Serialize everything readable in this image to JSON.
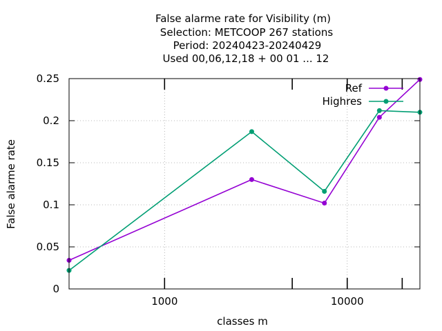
{
  "chart_data": {
    "type": "line",
    "title_lines": [
      "False alarme rate  for Visibility (m)",
      "Selection: METCOOP    267 stations",
      "Period: 20240423-20240429",
      "Used  00,06,12,18 + 00 01 ... 12"
    ],
    "xlabel": "classes m",
    "ylabel": "False alarme rate",
    "x_scale": "log",
    "xlim": [
      300,
      25000
    ],
    "ylim": [
      0,
      0.25
    ],
    "x_ticks": [
      {
        "value": 1000,
        "label": "1000"
      },
      {
        "value": 10000,
        "label": "10000"
      }
    ],
    "x_minor_ticks": [
      5000,
      20000
    ],
    "y_ticks": [
      {
        "value": 0,
        "label": "0"
      },
      {
        "value": 0.05,
        "label": "0.05"
      },
      {
        "value": 0.1,
        "label": "0.1"
      },
      {
        "value": 0.15,
        "label": "0.15"
      },
      {
        "value": 0.2,
        "label": "0.2"
      },
      {
        "value": 0.25,
        "label": "0.25"
      }
    ],
    "grid": true,
    "legend_position": "top-right",
    "series": [
      {
        "name": "Ref",
        "color": "#9400d3",
        "points": [
          {
            "x": 300,
            "y": 0.034
          },
          {
            "x": 3000,
            "y": 0.13
          },
          {
            "x": 7500,
            "y": 0.102
          },
          {
            "x": 15000,
            "y": 0.204
          },
          {
            "x": 25000,
            "y": 0.249
          }
        ]
      },
      {
        "name": "Highres",
        "color": "#009e73",
        "points": [
          {
            "x": 300,
            "y": 0.022
          },
          {
            "x": 3000,
            "y": 0.187
          },
          {
            "x": 7500,
            "y": 0.116
          },
          {
            "x": 15000,
            "y": 0.212
          },
          {
            "x": 25000,
            "y": 0.21
          }
        ]
      }
    ]
  }
}
